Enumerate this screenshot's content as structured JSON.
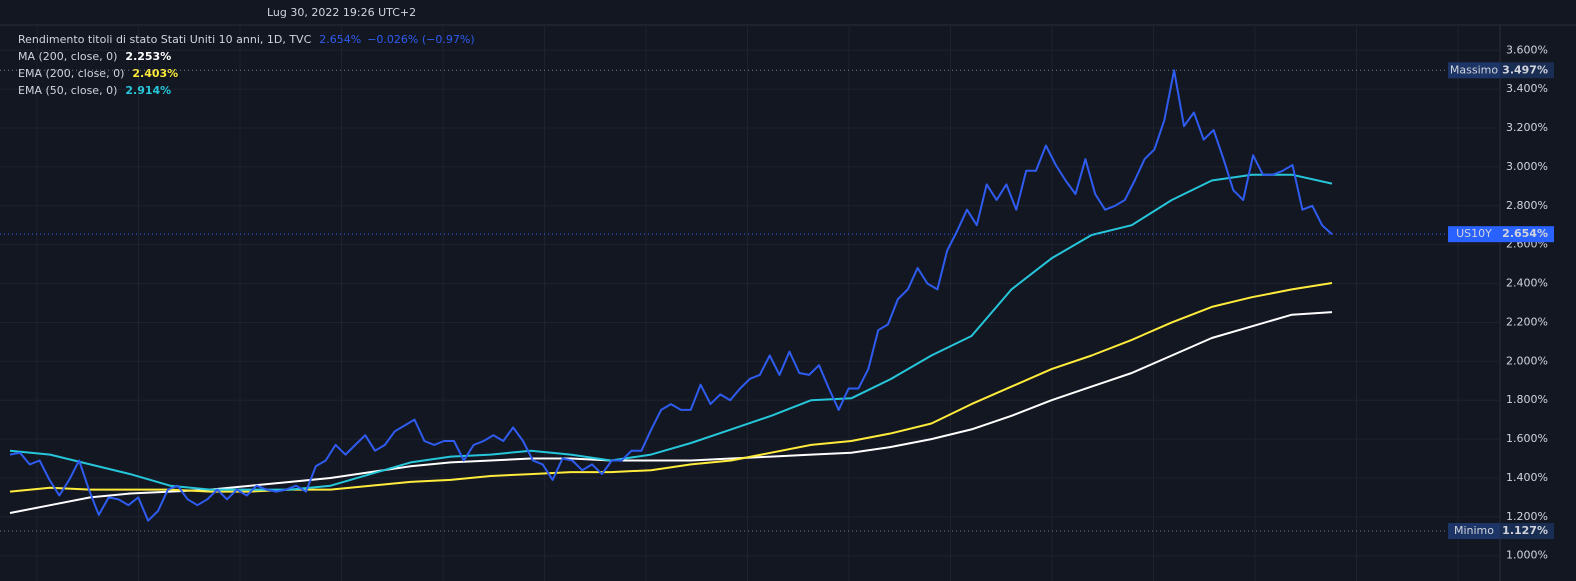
{
  "chart_data": {
    "type": "line",
    "header": "Lug 30, 2022 19:26 UTC+2",
    "title": "Rendimento titoli di stato Stati Uniti 10 anni, 1D, TVC",
    "price_label": "2.654%",
    "change_label": "−0.026% (−0.97%)",
    "ylim": [
      0.87,
      3.73
    ],
    "yticks": [
      {
        "value": 1.0,
        "label": "1.000%"
      },
      {
        "value": 1.2,
        "label": "1.200%"
      },
      {
        "value": 1.4,
        "label": "1.400%"
      },
      {
        "value": 1.6,
        "label": "1.600%"
      },
      {
        "value": 1.8,
        "label": "1.800%"
      },
      {
        "value": 2.0,
        "label": "2.000%"
      },
      {
        "value": 2.2,
        "label": "2.200%"
      },
      {
        "value": 2.4,
        "label": "2.400%"
      },
      {
        "value": 2.6,
        "label": "2.600%"
      },
      {
        "value": 2.8,
        "label": "2.800%"
      },
      {
        "value": 3.0,
        "label": "3.000%"
      },
      {
        "value": 3.2,
        "label": "3.200%"
      },
      {
        "value": 3.4,
        "label": "3.400%"
      },
      {
        "value": 3.6,
        "label": "3.600%"
      }
    ],
    "grid": true,
    "series": [
      {
        "name": "US10Y",
        "color": "#2f5cf0",
        "values": [
          1.52,
          1.53,
          1.47,
          1.49,
          1.39,
          1.31,
          1.39,
          1.49,
          1.34,
          1.21,
          1.3,
          1.29,
          1.26,
          1.3,
          1.18,
          1.23,
          1.34,
          1.36,
          1.29,
          1.26,
          1.29,
          1.34,
          1.29,
          1.34,
          1.31,
          1.36,
          1.34,
          1.33,
          1.34,
          1.36,
          1.33,
          1.46,
          1.49,
          1.57,
          1.52,
          1.57,
          1.62,
          1.54,
          1.57,
          1.64,
          1.67,
          1.7,
          1.59,
          1.57,
          1.59,
          1.59,
          1.49,
          1.57,
          1.59,
          1.62,
          1.59,
          1.66,
          1.59,
          1.49,
          1.47,
          1.39,
          1.5,
          1.49,
          1.44,
          1.47,
          1.42,
          1.49,
          1.49,
          1.54,
          1.54,
          1.65,
          1.75,
          1.78,
          1.75,
          1.75,
          1.88,
          1.78,
          1.83,
          1.8,
          1.86,
          1.91,
          1.93,
          2.03,
          1.93,
          2.05,
          1.94,
          1.93,
          1.98,
          1.86,
          1.75,
          1.86,
          1.86,
          1.96,
          2.16,
          2.19,
          2.32,
          2.37,
          2.48,
          2.4,
          2.37,
          2.57,
          2.67,
          2.78,
          2.7,
          2.91,
          2.83,
          2.91,
          2.78,
          2.98,
          2.98,
          3.11,
          3.01,
          2.93,
          2.86,
          3.04,
          2.86,
          2.78,
          2.8,
          2.83,
          2.93,
          3.04,
          3.09,
          3.24,
          3.497,
          3.21,
          3.28,
          3.14,
          3.19,
          3.04,
          2.88,
          2.83,
          3.06,
          2.96,
          2.96,
          2.98,
          3.01,
          2.78,
          2.8,
          2.7,
          2.654
        ]
      },
      {
        "name": "MA (200, close, 0)",
        "color": "#ffffff",
        "value_label": "2.253%",
        "values": [
          1.22,
          1.26,
          1.3,
          1.32,
          1.33,
          1.34,
          1.36,
          1.38,
          1.4,
          1.43,
          1.46,
          1.48,
          1.49,
          1.5,
          1.5,
          1.49,
          1.49,
          1.49,
          1.5,
          1.51,
          1.52,
          1.53,
          1.56,
          1.6,
          1.65,
          1.72,
          1.8,
          1.87,
          1.94,
          2.03,
          2.12,
          2.18,
          2.24,
          2.253
        ]
      },
      {
        "name": "EMA (200, close, 0)",
        "color": "#ffeb3b",
        "value_label": "2.403%",
        "values": [
          1.33,
          1.35,
          1.34,
          1.34,
          1.34,
          1.33,
          1.33,
          1.34,
          1.34,
          1.36,
          1.38,
          1.39,
          1.41,
          1.42,
          1.43,
          1.43,
          1.44,
          1.47,
          1.49,
          1.53,
          1.57,
          1.59,
          1.63,
          1.68,
          1.78,
          1.87,
          1.96,
          2.03,
          2.11,
          2.2,
          2.28,
          2.33,
          2.37,
          2.403
        ]
      },
      {
        "name": "EMA (50, close, 0)",
        "color": "#26c6da",
        "value_label": "2.914%",
        "values": [
          1.54,
          1.52,
          1.47,
          1.42,
          1.36,
          1.34,
          1.34,
          1.34,
          1.36,
          1.42,
          1.48,
          1.51,
          1.52,
          1.54,
          1.52,
          1.49,
          1.52,
          1.58,
          1.65,
          1.72,
          1.8,
          1.81,
          1.91,
          2.03,
          2.13,
          2.37,
          2.53,
          2.65,
          2.7,
          2.83,
          2.93,
          2.96,
          2.96,
          2.914
        ]
      }
    ],
    "markers": [
      {
        "label": "Massimo",
        "value": 3.497,
        "value_label": "3.497%",
        "color": "#1c3566"
      },
      {
        "label": "US10Y",
        "value": 2.654,
        "value_label": "2.654%",
        "color": "#2962ff"
      },
      {
        "label": "Minimo",
        "value": 1.127,
        "value_label": "1.127%",
        "color": "#1c3566"
      }
    ]
  }
}
